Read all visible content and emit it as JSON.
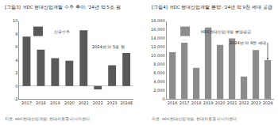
{
  "chart_data": [
    {
      "type": "bar",
      "title": "[그림3]  HDC 현대산업개발 수주 추이: '24년 약 5조 원",
      "source": "자료: HDC현대산업개발, 현대차증권 리서치센터",
      "categories": [
        "2017",
        "2018",
        "2019",
        "2020",
        "2021",
        "2022",
        "2023",
        "2024E"
      ],
      "series": [
        {
          "name": "신규수주",
          "color": "#595959",
          "values": [
            7.6,
            5.6,
            4.3,
            3.9,
            8.6,
            -0.5,
            3.2,
            5.1
          ]
        }
      ],
      "ylim": [
        -2,
        10
      ],
      "yticks": [
        -2,
        0,
        2,
        4,
        6,
        8,
        10
      ],
      "legend": "upper left",
      "annotations": [
        {
          "text": "2024년 약 5조 원",
          "category": "2024E"
        }
      ]
    },
    {
      "type": "bar",
      "title": "[그림4]  HDC 현대산업개발 분양: '24년 약 9천 세대 공급",
      "source": "자료: HDC현대산업개발, 현대차증권 리서치센터",
      "categories": [
        "2016",
        "2017",
        "2018",
        "2019",
        "2020",
        "2021",
        "2022",
        "2023",
        "2024"
      ],
      "series": [
        {
          "name": "HDC현대산업개발 분양공급",
          "color": "#8c8c8c",
          "values": [
            10800,
            13000,
            7200,
            16500,
            12500,
            14000,
            5200,
            11300,
            9000
          ]
        }
      ],
      "ylim": [
        0,
        18000
      ],
      "yticks": [
        0,
        {
          "value": 2000,
          "label": "2,000"
        },
        {
          "value": 4000,
          "label": "4,000"
        },
        {
          "value": 6000,
          "label": "6,000"
        },
        {
          "value": 8000,
          "label": "8,000"
        },
        {
          "value": 10000,
          "label": "10,000"
        },
        {
          "value": 12000,
          "label": "12,000"
        },
        {
          "value": 14000,
          "label": "14,000"
        },
        {
          "value": 16000,
          "label": "16,000"
        },
        {
          "value": 18000,
          "label": "18,000"
        }
      ],
      "legend": "upper left",
      "annotations": [
        {
          "text": "2024년 약 9천 세대",
          "category": "2024"
        }
      ]
    }
  ]
}
